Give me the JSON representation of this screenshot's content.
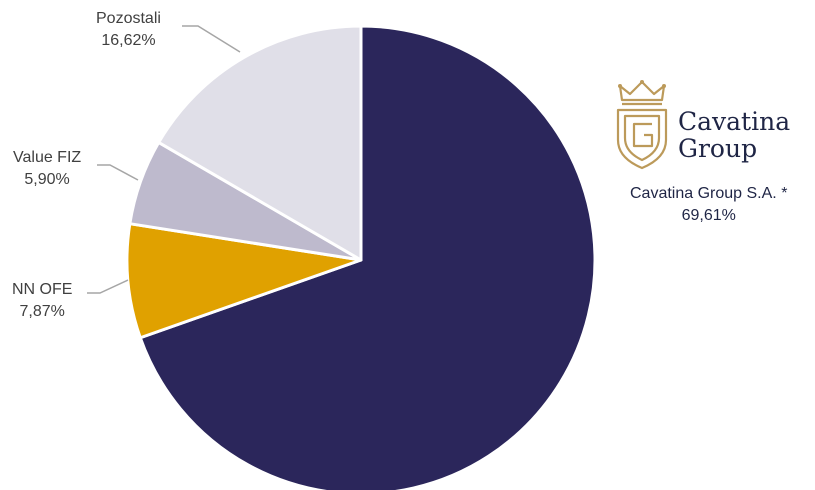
{
  "chart_data": {
    "type": "pie",
    "title": "",
    "slices": [
      {
        "label": "Cavatina Group S.A. *",
        "value": 69.61,
        "display": "69,61%",
        "color": "#2b265b"
      },
      {
        "label": "NN OFE",
        "value": 7.87,
        "display": "7,87%",
        "color": "#e0a100"
      },
      {
        "label": "Value FIZ",
        "value": 5.9,
        "display": "5,90%",
        "color": "#bebacd"
      },
      {
        "label": "Pozostali",
        "value": 16.62,
        "display": "16,62%",
        "color": "#e0dfe8"
      }
    ],
    "start": "12 o'clock",
    "direction": "clockwise",
    "slice_border_color": "#ffffff"
  },
  "logo": {
    "line1": "Cavatina",
    "line2": "Group",
    "gold_color": "#bc9a5a",
    "text_color": "#1f2545"
  },
  "label_color": "#404040",
  "leader_line_color": "#a6a6a6"
}
